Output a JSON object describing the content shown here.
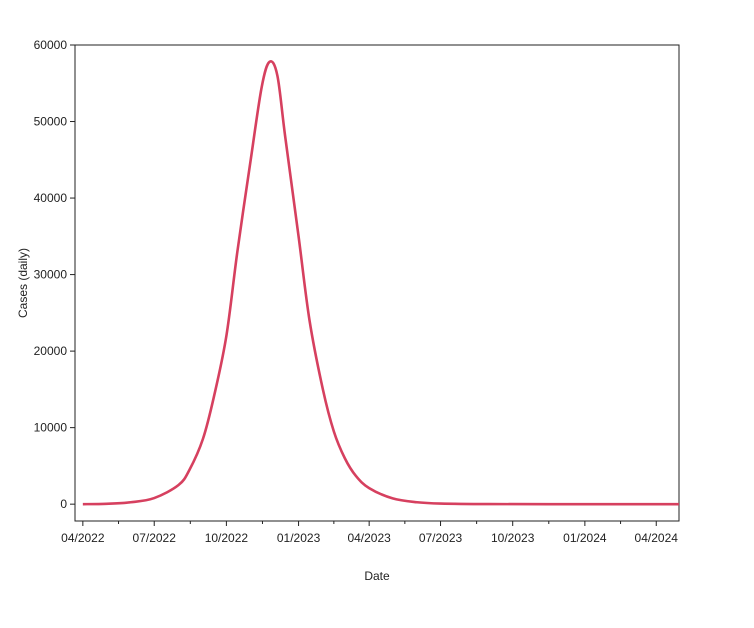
{
  "chart_data": {
    "type": "line",
    "title": "",
    "xlabel": "Date",
    "ylabel": "Cases (daily)",
    "x_axis_type": "date",
    "xlim": [
      "2022-03-22",
      "2024-04-30"
    ],
    "ylim": [
      -2200,
      60000
    ],
    "x_ticks": [
      {
        "date": "2022-04-01",
        "label": "04/2022"
      },
      {
        "date": "2022-07-01",
        "label": "07/2022"
      },
      {
        "date": "2022-10-01",
        "label": "10/2022"
      },
      {
        "date": "2023-01-01",
        "label": "01/2023"
      },
      {
        "date": "2023-04-01",
        "label": "04/2023"
      },
      {
        "date": "2023-07-01",
        "label": "07/2023"
      },
      {
        "date": "2023-10-01",
        "label": "10/2023"
      },
      {
        "date": "2024-01-01",
        "label": "01/2024"
      },
      {
        "date": "2024-04-01",
        "label": "04/2024"
      }
    ],
    "y_ticks": [
      0,
      10000,
      20000,
      30000,
      40000,
      50000,
      60000
    ],
    "grid": false,
    "legend": "none",
    "series": [
      {
        "color": "#d6405f",
        "points": [
          [
            "2022-04-01",
            0
          ],
          [
            "2022-05-01",
            50
          ],
          [
            "2022-06-01",
            250
          ],
          [
            "2022-07-01",
            800
          ],
          [
            "2022-08-01",
            2500
          ],
          [
            "2022-08-15",
            4500
          ],
          [
            "2022-09-01",
            8500
          ],
          [
            "2022-09-15",
            14000
          ],
          [
            "2022-10-01",
            22000
          ],
          [
            "2022-10-15",
            33000
          ],
          [
            "2022-11-01",
            45000
          ],
          [
            "2022-11-15",
            54500
          ],
          [
            "2022-11-25",
            57800
          ],
          [
            "2022-12-05",
            56000
          ],
          [
            "2022-12-15",
            48000
          ],
          [
            "2023-01-01",
            35000
          ],
          [
            "2023-01-15",
            24000
          ],
          [
            "2023-02-01",
            15000
          ],
          [
            "2023-02-15",
            9500
          ],
          [
            "2023-03-01",
            6000
          ],
          [
            "2023-03-15",
            3700
          ],
          [
            "2023-04-01",
            2100
          ],
          [
            "2023-05-01",
            750
          ],
          [
            "2023-06-01",
            250
          ],
          [
            "2023-07-01",
            80
          ],
          [
            "2023-09-01",
            10
          ],
          [
            "2024-01-01",
            0
          ],
          [
            "2024-04-30",
            0
          ]
        ]
      }
    ]
  }
}
